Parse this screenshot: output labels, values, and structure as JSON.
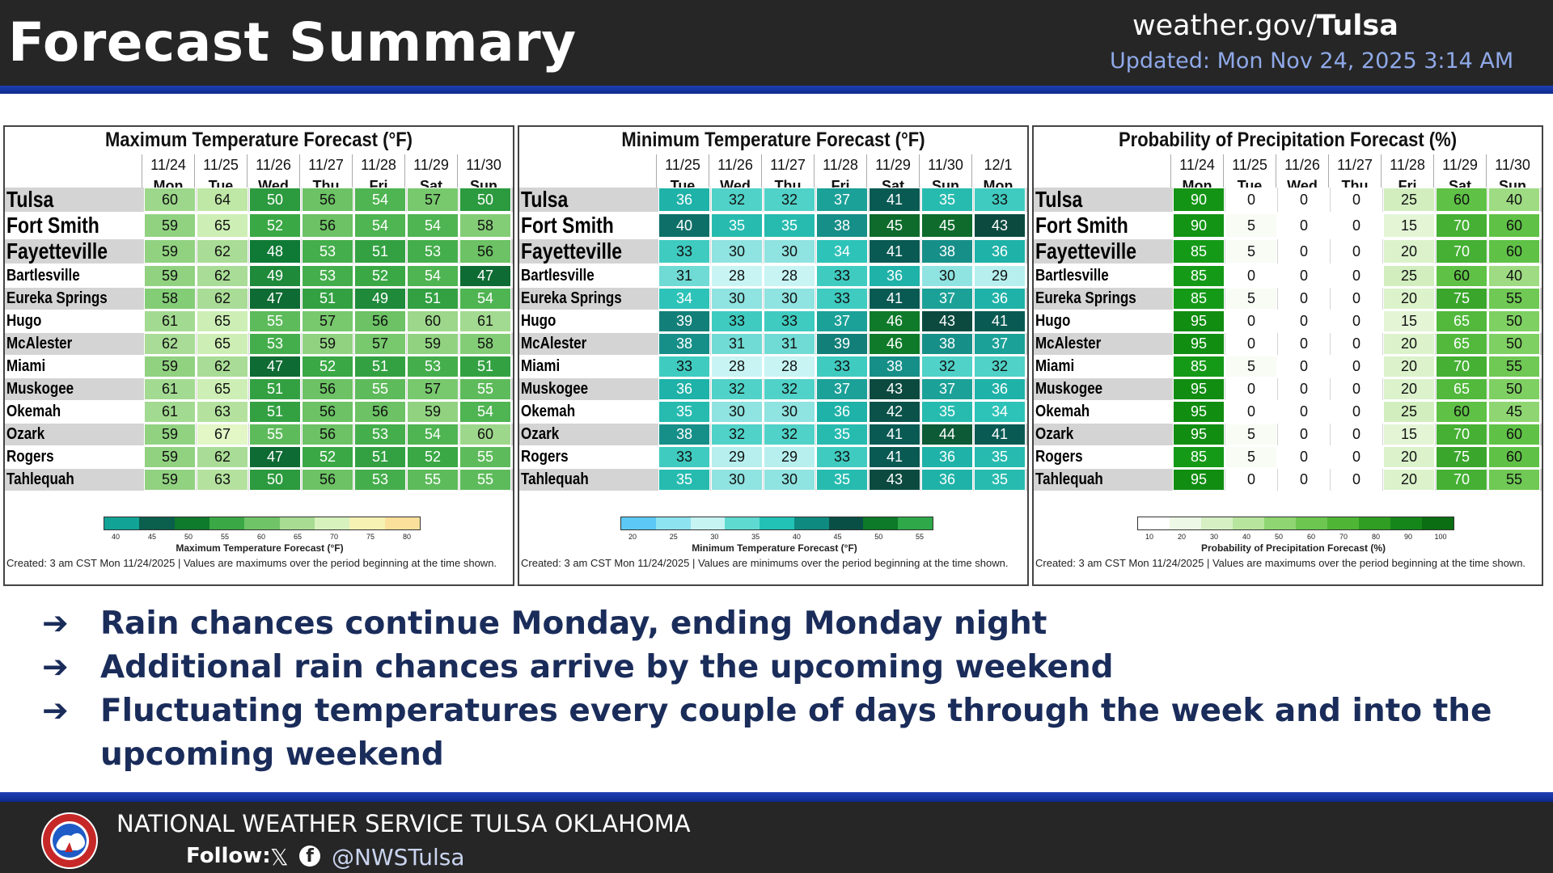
{
  "header": {
    "title": "Forecast Summary",
    "site_prefix": "weather.gov/",
    "site_office": "Tulsa",
    "updated": "Updated: Mon Nov 24, 2025 3:14 AM"
  },
  "cities": [
    "Tulsa",
    "Fort Smith",
    "Fayetteville",
    "Bartlesville",
    "Eureka Springs",
    "Hugo",
    "McAlester",
    "Miami",
    "Muskogee",
    "Okemah",
    "Ozark",
    "Rogers",
    "Tahlequah"
  ],
  "panels": [
    {
      "title": "Maximum Temperature Forecast (°F)",
      "dates": [
        "11/24",
        "11/25",
        "11/26",
        "11/27",
        "11/28",
        "11/29",
        "11/30"
      ],
      "days": [
        "Mon",
        "Tue",
        "Wed",
        "Thu",
        "Fri",
        "Sat",
        "Sun"
      ],
      "values": [
        [
          60,
          64,
          50,
          56,
          54,
          57,
          50
        ],
        [
          59,
          65,
          52,
          56,
          54,
          54,
          58
        ],
        [
          59,
          62,
          48,
          53,
          51,
          53,
          56
        ],
        [
          59,
          62,
          49,
          53,
          52,
          54,
          47
        ],
        [
          58,
          62,
          47,
          51,
          49,
          51,
          54
        ],
        [
          61,
          65,
          55,
          57,
          56,
          60,
          61
        ],
        [
          62,
          65,
          53,
          59,
          57,
          59,
          58
        ],
        [
          59,
          62,
          47,
          52,
          51,
          53,
          51
        ],
        [
          61,
          65,
          51,
          56,
          55,
          57,
          55
        ],
        [
          61,
          63,
          51,
          56,
          56,
          59,
          54
        ],
        [
          59,
          67,
          55,
          56,
          53,
          54,
          60
        ],
        [
          59,
          62,
          47,
          52,
          51,
          52,
          55
        ],
        [
          59,
          63,
          50,
          56,
          53,
          55,
          55
        ]
      ],
      "legend_ticks": [
        "40",
        "45",
        "50",
        "55",
        "60",
        "65",
        "70",
        "75",
        "80"
      ],
      "legend_colors": [
        "#12a397",
        "#0b5f4d",
        "#0e7a2c",
        "#3aa845",
        "#70c468",
        "#a8dc92",
        "#d8f2bd",
        "#f5f2b4",
        "#fbe09c"
      ],
      "legend_title": "Maximum Temperature Forecast (°F)",
      "note": "Created: 3 am CST Mon 11/24/2025  |  Values are maximums over the period beginning at the time shown."
    },
    {
      "title": "Minimum Temperature Forecast (°F)",
      "dates": [
        "11/25",
        "11/26",
        "11/27",
        "11/28",
        "11/29",
        "11/30",
        "12/1"
      ],
      "days": [
        "Tue",
        "Wed",
        "Thu",
        "Fri",
        "Sat",
        "Sun",
        "Mon"
      ],
      "values": [
        [
          36,
          32,
          32,
          37,
          41,
          35,
          33
        ],
        [
          40,
          35,
          35,
          38,
          45,
          45,
          43
        ],
        [
          33,
          30,
          30,
          34,
          41,
          38,
          36
        ],
        [
          31,
          28,
          28,
          33,
          36,
          30,
          29
        ],
        [
          34,
          30,
          30,
          33,
          41,
          37,
          36
        ],
        [
          39,
          33,
          33,
          37,
          46,
          43,
          41
        ],
        [
          38,
          31,
          31,
          39,
          46,
          38,
          37
        ],
        [
          33,
          28,
          28,
          33,
          38,
          32,
          32
        ],
        [
          36,
          32,
          32,
          37,
          43,
          37,
          36
        ],
        [
          35,
          30,
          30,
          36,
          42,
          35,
          34
        ],
        [
          38,
          32,
          32,
          35,
          41,
          44,
          41
        ],
        [
          33,
          29,
          29,
          33,
          41,
          36,
          35
        ],
        [
          35,
          30,
          30,
          35,
          43,
          36,
          35
        ]
      ],
      "legend_ticks": [
        "20",
        "25",
        "30",
        "35",
        "40",
        "45",
        "50",
        "55"
      ],
      "legend_colors": [
        "#5bc8f5",
        "#8ee3f0",
        "#c6f4f3",
        "#5fdad0",
        "#22c2b6",
        "#0f8a80",
        "#0a4f45",
        "#0c7a28",
        "#2fa84a"
      ],
      "legend_title": "Minimum Temperature Forecast (°F)",
      "note": "Created: 3 am CST Mon 11/24/2025  |  Values are minimums over the period beginning at the time shown."
    },
    {
      "title": "Probability of Precipitation Forecast (%)",
      "dates": [
        "11/24",
        "11/25",
        "11/26",
        "11/27",
        "11/28",
        "11/29",
        "11/30"
      ],
      "days": [
        "Mon",
        "Tue",
        "Wed",
        "Thu",
        "Fri",
        "Sat",
        "Sun"
      ],
      "values": [
        [
          90,
          0,
          0,
          0,
          25,
          60,
          40
        ],
        [
          90,
          5,
          0,
          0,
          15,
          70,
          60
        ],
        [
          85,
          5,
          0,
          0,
          20,
          70,
          60
        ],
        [
          85,
          0,
          0,
          0,
          25,
          60,
          40
        ],
        [
          85,
          5,
          0,
          0,
          20,
          75,
          55
        ],
        [
          95,
          0,
          0,
          0,
          15,
          65,
          50
        ],
        [
          95,
          0,
          0,
          0,
          20,
          65,
          50
        ],
        [
          85,
          5,
          0,
          0,
          20,
          70,
          55
        ],
        [
          95,
          0,
          0,
          0,
          20,
          65,
          50
        ],
        [
          95,
          0,
          0,
          0,
          25,
          60,
          45
        ],
        [
          95,
          5,
          0,
          0,
          15,
          70,
          60
        ],
        [
          85,
          5,
          0,
          0,
          20,
          75,
          60
        ],
        [
          95,
          0,
          0,
          0,
          20,
          70,
          55
        ]
      ],
      "legend_ticks": [
        "10",
        "20",
        "30",
        "40",
        "50",
        "60",
        "70",
        "80",
        "90",
        "100"
      ],
      "legend_colors": [
        "#ffffff",
        "#eef8e6",
        "#d6f0c4",
        "#b8e59e",
        "#8fd572",
        "#6cc650",
        "#4fb535",
        "#2f9e22",
        "#15861a",
        "#0b6e12"
      ],
      "legend_title": "Probability of Precipitation Forecast (%)",
      "note": "Created: 3 am CST Mon 11/24/2025  |  Values are maximums over the period beginning at the time shown."
    }
  ],
  "bullets": [
    "Rain chances continue Monday, ending Monday night",
    "Additional rain chances arrive by the upcoming weekend",
    "Fluctuating temperatures every couple of days through the week and into the upcoming weekend"
  ],
  "bullet_arrow": "➔",
  "footer": {
    "org": "NATIONAL WEATHER SERVICE TULSA OKLAHOMA",
    "follow": "Follow:",
    "handle": "@NWSTulsa"
  },
  "icons": {
    "nws_logo": "nws-logo",
    "x": "x-logo-icon",
    "facebook": "facebook-icon"
  }
}
